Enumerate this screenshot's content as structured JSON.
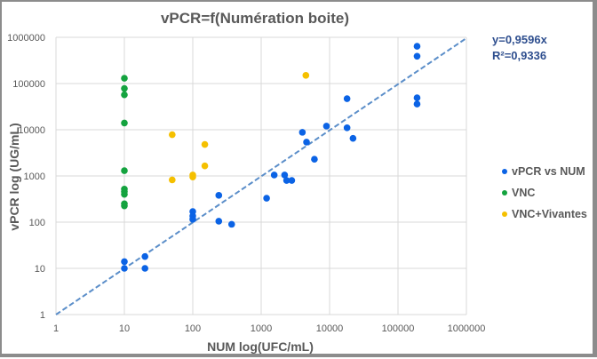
{
  "chart_data": {
    "type": "scatter",
    "title": "vPCR=f(Numération boite)",
    "xlabel": "NUM log(UFC/mL)",
    "ylabel": "vPCR log (UG/mL)",
    "xscale": "log",
    "yscale": "log",
    "xlim": [
      1,
      1000000
    ],
    "ylim": [
      1,
      1000000
    ],
    "x_ticks": [
      "1",
      "10",
      "100",
      "1000",
      "10000",
      "100000",
      "1000000"
    ],
    "y_ticks": [
      "1",
      "10",
      "100",
      "1000",
      "10000",
      "100000",
      "1000000"
    ],
    "x_tick_values": [
      1,
      10,
      100,
      1000,
      10000,
      100000,
      1000000
    ],
    "y_tick_values": [
      1,
      10,
      100,
      1000,
      10000,
      100000,
      1000000
    ],
    "grid": true,
    "legend_position": "right",
    "series": [
      {
        "name": "vPCR vs NUM",
        "color": "#0b63e5",
        "points": [
          [
            10,
            10
          ],
          [
            10,
            14
          ],
          [
            20,
            18
          ],
          [
            20,
            10
          ],
          [
            100,
            170
          ],
          [
            100,
            136
          ],
          [
            100,
            115
          ],
          [
            240,
            380
          ],
          [
            240,
            105
          ],
          [
            370,
            90
          ],
          [
            1200,
            330
          ],
          [
            1550,
            1050
          ],
          [
            2200,
            1050
          ],
          [
            2350,
            800
          ],
          [
            2800,
            800
          ],
          [
            4000,
            8800
          ],
          [
            4600,
            5400
          ],
          [
            6000,
            2300
          ],
          [
            9000,
            12000
          ],
          [
            18000,
            47000
          ],
          [
            18000,
            11000
          ],
          [
            22000,
            6500
          ],
          [
            190000,
            640000
          ],
          [
            190000,
            390000
          ],
          [
            190000,
            49000
          ],
          [
            190000,
            36000
          ]
        ]
      },
      {
        "name": "VNC",
        "color": "#14a33f",
        "points": [
          [
            10,
            130000
          ],
          [
            10,
            78000
          ],
          [
            10,
            57000
          ],
          [
            10,
            14000
          ],
          [
            10,
            1300
          ],
          [
            10,
            520
          ],
          [
            10,
            460
          ],
          [
            10,
            400
          ],
          [
            10,
            250
          ],
          [
            10,
            225
          ]
        ]
      },
      {
        "name": "VNC+Vivantes",
        "color": "#f5c000",
        "points": [
          [
            50,
            7800
          ],
          [
            50,
            820
          ],
          [
            100,
            1050
          ],
          [
            100,
            950
          ],
          [
            150,
            4800
          ],
          [
            150,
            1650
          ],
          [
            4500,
            150000
          ]
        ]
      }
    ],
    "trendline": {
      "series": "vPCR vs NUM",
      "type": "linear",
      "style": "dashed",
      "color": "#5b8ec9",
      "slope": 0.9596,
      "equation": "y=0,9596x",
      "r_squared": "R²=0,9336"
    }
  }
}
